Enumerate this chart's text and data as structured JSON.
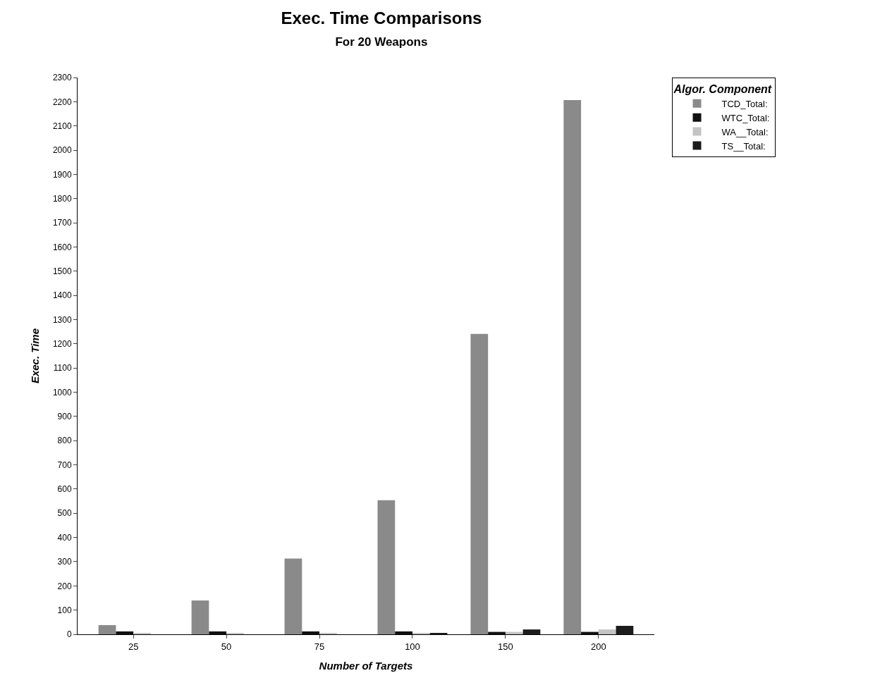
{
  "chart_data": {
    "type": "bar",
    "title": "Exec. Time Comparisons",
    "subtitle": "For 20 Weapons",
    "xlabel": "Number of Targets",
    "ylabel": "Exec. Time",
    "legend_title": "Algor. Component",
    "categories": [
      "25",
      "50",
      "75",
      "100",
      "150",
      "200"
    ],
    "series": [
      {
        "name": "TCD_Total:",
        "color": "#8a8a8a",
        "values": [
          38,
          140,
          313,
          554,
          1241,
          2207
        ]
      },
      {
        "name": "WTC_Total:",
        "color": "#111111",
        "values": [
          12,
          12,
          12,
          12,
          10,
          10
        ]
      },
      {
        "name": "WA__Total:",
        "color": "#c4c4c4",
        "values": [
          3,
          3,
          3,
          5,
          10,
          20
        ]
      },
      {
        "name": "TS__Total:",
        "color": "#1c1c1c",
        "values": [
          null,
          null,
          null,
          3,
          20,
          35
        ]
      }
    ],
    "ylim": [
      0,
      2300
    ],
    "yticks": [
      0,
      100,
      200,
      300,
      400,
      500,
      600,
      700,
      800,
      900,
      1000,
      1100,
      1200,
      1300,
      1400,
      1500,
      1600,
      1700,
      1800,
      1900,
      2000,
      2100,
      2200,
      2300
    ],
    "legend": "right"
  }
}
